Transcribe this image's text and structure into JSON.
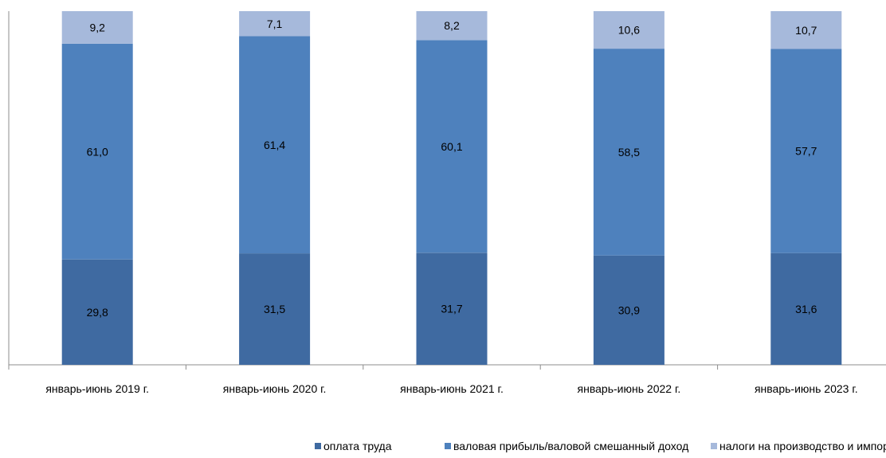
{
  "chart_data": {
    "type": "bar",
    "stacked": true,
    "categories": [
      "январь-июнь 2019 г.",
      "январь-июнь 2020 г.",
      "январь-июнь 2021 г.",
      "январь-июнь 2022 г.",
      "январь-июнь 2023 г."
    ],
    "series": [
      {
        "name": "оплата труда",
        "color": "#3f6aa1",
        "values": [
          29.8,
          31.5,
          31.7,
          30.9,
          31.6
        ],
        "labels": [
          "29,8",
          "31,5",
          "31,7",
          "30,9",
          "31,6"
        ]
      },
      {
        "name": "валовая прибыль/валовой смешанный доход",
        "color": "#4e81bd",
        "values": [
          61.0,
          61.4,
          60.1,
          58.5,
          57.7
        ],
        "labels": [
          "61,0",
          "61,4",
          "60,1",
          "58,5",
          "57,7"
        ]
      },
      {
        "name": "налоги на производство и импорт",
        "color": "#a6b9db",
        "values": [
          9.2,
          7.1,
          8.2,
          10.6,
          10.7
        ],
        "labels": [
          "9,2",
          "7,1",
          "8,2",
          "10,6",
          "10,7"
        ]
      }
    ],
    "ylim": [
      0,
      100
    ],
    "legend_position": "bottom",
    "grid": false
  }
}
